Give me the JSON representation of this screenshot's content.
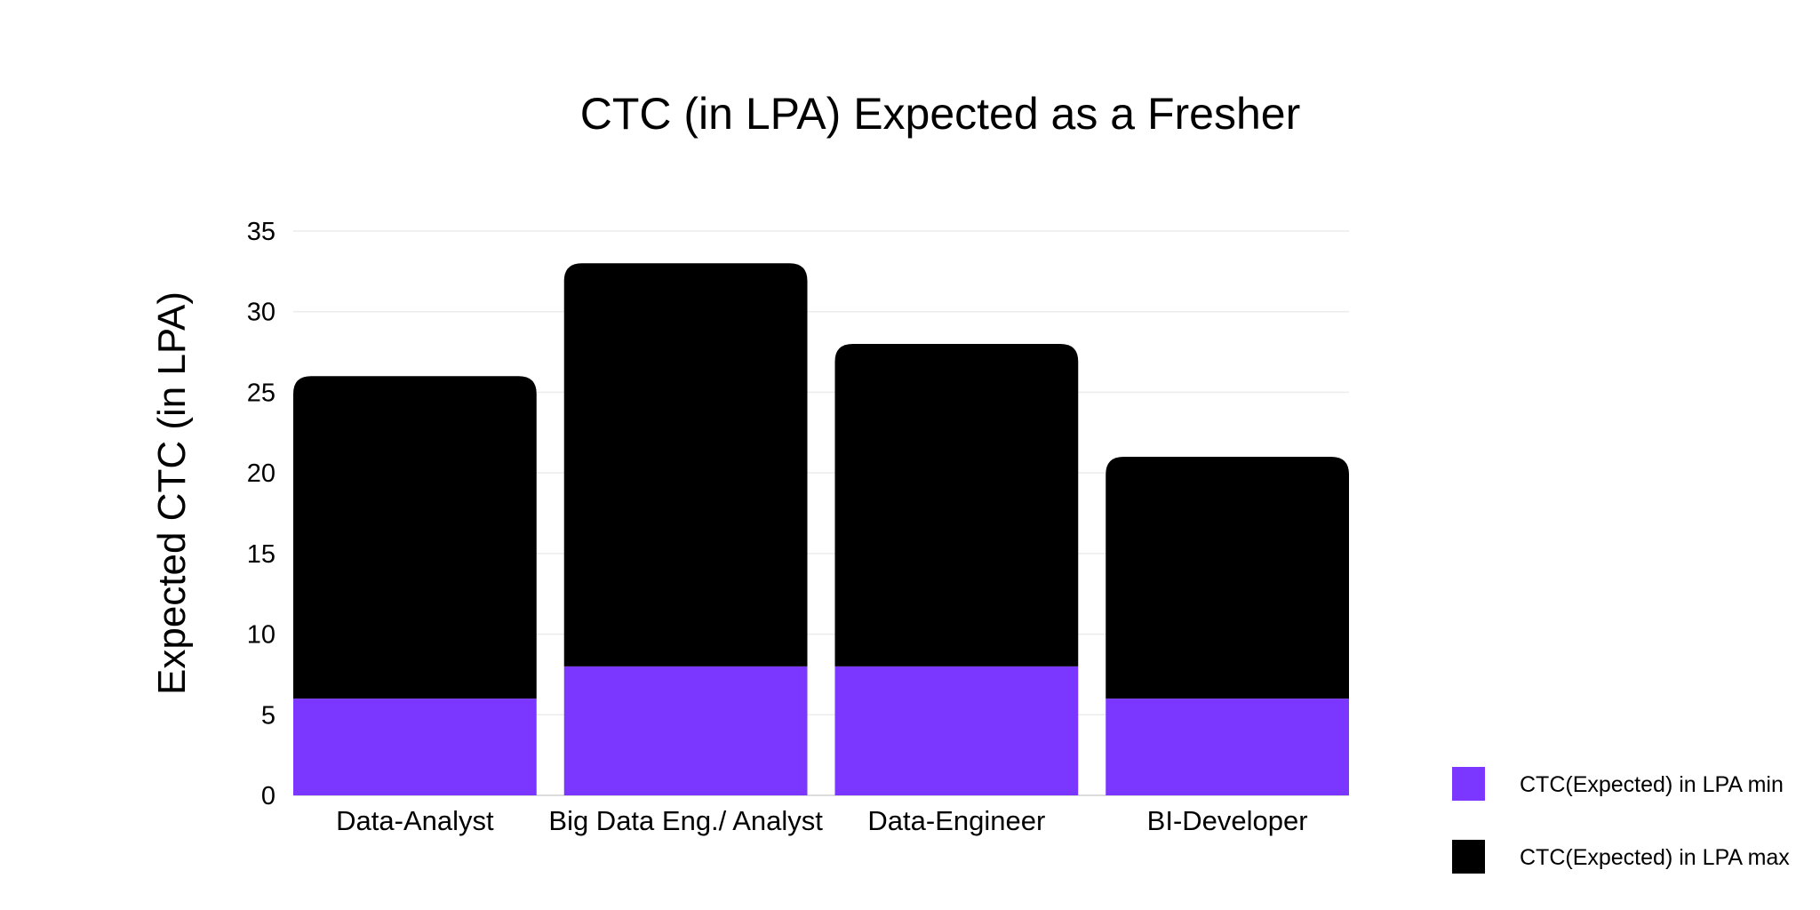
{
  "chart_data": {
    "type": "bar",
    "stacked": true,
    "title": "CTC (in LPA) Expected as a Fresher",
    "xlabel": "",
    "ylabel": "Expected CTC (in LPA)",
    "ylim": [
      0,
      35
    ],
    "yticks": [
      "0",
      "5",
      "10",
      "15",
      "20",
      "25",
      "30",
      "35"
    ],
    "grid": true,
    "legend_position": "bottom-right",
    "categories": [
      "Data-Analyst",
      "Big Data Eng./ Analyst",
      "Data-Engineer",
      "BI-Developer"
    ],
    "series": [
      {
        "name": "CTC(Expected) in LPA min",
        "values": [
          6,
          8,
          8,
          6
        ],
        "color": "#7b36ff"
      },
      {
        "name": "CTC(Expected) in LPA max",
        "values": [
          20,
          25,
          20,
          15
        ],
        "color": "#000000"
      }
    ]
  }
}
